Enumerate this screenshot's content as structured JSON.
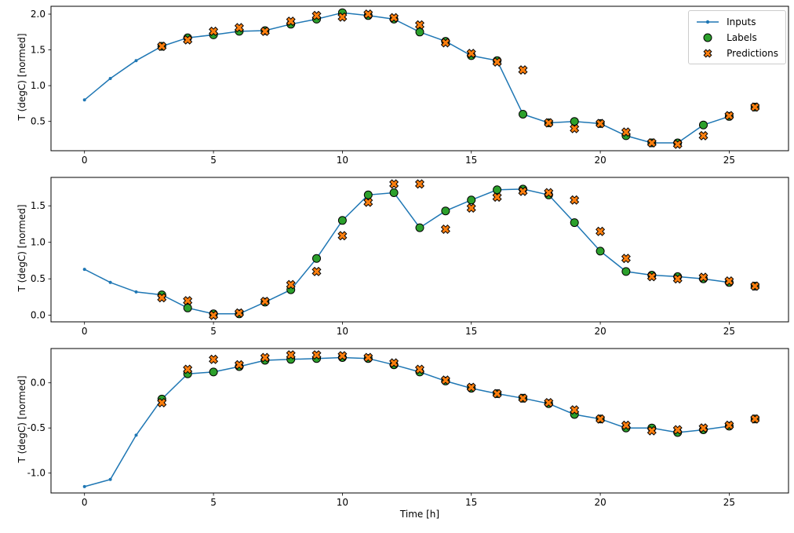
{
  "figure": {
    "xlabel": "Time [h]",
    "ylabel": "T (degC) [normed]",
    "background": "#ffffff",
    "spine_color": "#000000"
  },
  "legend": {
    "position": "upper right of first subplot",
    "items": [
      {
        "label": "Inputs",
        "marker": "line-with-dot",
        "color": "#1f77b4"
      },
      {
        "label": "Labels",
        "marker": "circle",
        "color": "#2ca02c",
        "edge": "#000000"
      },
      {
        "label": "Predictions",
        "marker": "x",
        "color": "#ff7f0e",
        "edge": "#000000"
      }
    ]
  },
  "chart_data": [
    {
      "type": "line",
      "title": "",
      "ylabel": "T (degC) [normed]",
      "xlim": [
        -1.3,
        27.3
      ],
      "ylim": [
        0.09,
        2.11
      ],
      "xticks": [
        0,
        5,
        10,
        15,
        20,
        25
      ],
      "yticks": [
        0.5,
        1.0,
        1.5,
        2.0
      ],
      "grid": false,
      "legend": true,
      "series": [
        {
          "name": "Inputs",
          "type": "line",
          "color": "#1f77b4",
          "x": [
            0,
            1,
            2,
            3,
            4,
            5,
            6,
            7,
            8,
            9,
            10,
            11,
            12,
            13,
            14,
            15,
            16,
            17,
            18,
            19,
            20,
            21,
            22,
            23,
            24,
            25
          ],
          "y": [
            0.8,
            1.1,
            1.35,
            1.55,
            1.67,
            1.71,
            1.76,
            1.77,
            1.86,
            1.93,
            2.02,
            1.98,
            1.93,
            1.75,
            1.62,
            1.42,
            1.35,
            0.6,
            0.48,
            0.5,
            0.47,
            0.3,
            0.2,
            0.2,
            0.45,
            0.57
          ]
        },
        {
          "name": "Labels",
          "type": "scatter-circle",
          "color": "#2ca02c",
          "x": [
            3,
            4,
            5,
            6,
            7,
            8,
            9,
            10,
            11,
            12,
            13,
            14,
            15,
            16,
            17,
            18,
            19,
            20,
            21,
            22,
            23,
            24,
            25,
            26
          ],
          "y": [
            1.55,
            1.67,
            1.71,
            1.76,
            1.77,
            1.86,
            1.93,
            2.02,
            1.98,
            1.93,
            1.75,
            1.62,
            1.42,
            1.35,
            0.6,
            0.48,
            0.5,
            0.47,
            0.3,
            0.2,
            0.2,
            0.45,
            0.57,
            0.7
          ]
        },
        {
          "name": "Predictions",
          "type": "scatter-x",
          "color": "#ff7f0e",
          "x": [
            3,
            4,
            5,
            6,
            7,
            8,
            9,
            10,
            11,
            12,
            13,
            14,
            15,
            16,
            17,
            18,
            19,
            20,
            21,
            22,
            23,
            24,
            25,
            26
          ],
          "y": [
            1.55,
            1.64,
            1.76,
            1.81,
            1.76,
            1.9,
            1.98,
            1.96,
            2.0,
            1.95,
            1.85,
            1.6,
            1.45,
            1.33,
            1.22,
            0.48,
            0.4,
            0.47,
            0.35,
            0.2,
            0.18,
            0.3,
            0.58,
            0.7
          ]
        }
      ]
    },
    {
      "type": "line",
      "title": "",
      "ylabel": "T (degC) [normed]",
      "xlim": [
        -1.3,
        27.3
      ],
      "ylim": [
        -0.09,
        1.89
      ],
      "xticks": [
        0,
        5,
        10,
        15,
        20,
        25
      ],
      "yticks": [
        0.0,
        0.5,
        1.0,
        1.5
      ],
      "grid": false,
      "legend": false,
      "series": [
        {
          "name": "Inputs",
          "type": "line",
          "color": "#1f77b4",
          "x": [
            0,
            1,
            2,
            3,
            4,
            5,
            6,
            7,
            8,
            9,
            10,
            11,
            12,
            13,
            14,
            15,
            16,
            17,
            18,
            19,
            20,
            21,
            22,
            23,
            24,
            25
          ],
          "y": [
            0.63,
            0.45,
            0.32,
            0.28,
            0.1,
            0.02,
            0.02,
            0.18,
            0.35,
            0.78,
            1.3,
            1.65,
            1.68,
            1.2,
            1.43,
            1.58,
            1.72,
            1.73,
            1.65,
            1.27,
            0.88,
            0.6,
            0.55,
            0.53,
            0.5,
            0.45
          ]
        },
        {
          "name": "Labels",
          "type": "scatter-circle",
          "color": "#2ca02c",
          "x": [
            3,
            4,
            5,
            6,
            7,
            8,
            9,
            10,
            11,
            12,
            13,
            14,
            15,
            16,
            17,
            18,
            19,
            20,
            21,
            22,
            23,
            24,
            25,
            26
          ],
          "y": [
            0.28,
            0.1,
            0.02,
            0.02,
            0.18,
            0.35,
            0.78,
            1.3,
            1.65,
            1.68,
            1.2,
            1.43,
            1.58,
            1.72,
            1.73,
            1.65,
            1.27,
            0.88,
            0.6,
            0.55,
            0.53,
            0.5,
            0.45,
            0.4
          ]
        },
        {
          "name": "Predictions",
          "type": "scatter-x",
          "color": "#ff7f0e",
          "x": [
            3,
            4,
            5,
            6,
            7,
            8,
            9,
            10,
            11,
            12,
            13,
            14,
            15,
            16,
            17,
            18,
            19,
            20,
            21,
            22,
            23,
            24,
            25,
            26
          ],
          "y": [
            0.24,
            0.2,
            0.0,
            0.03,
            0.19,
            0.42,
            0.6,
            1.09,
            1.55,
            1.8,
            1.8,
            1.18,
            1.47,
            1.62,
            1.7,
            1.68,
            1.58,
            1.15,
            0.78,
            0.53,
            0.5,
            0.52,
            0.47,
            0.4
          ]
        }
      ]
    },
    {
      "type": "line",
      "title": "",
      "ylabel": "T (degC) [normed]",
      "xlabel": "Time [h]",
      "xlim": [
        -1.3,
        27.3
      ],
      "ylim": [
        -1.22,
        0.38
      ],
      "xticks": [
        0,
        5,
        10,
        15,
        20,
        25
      ],
      "yticks": [
        -1.0,
        -0.5,
        0.0
      ],
      "grid": false,
      "legend": false,
      "series": [
        {
          "name": "Inputs",
          "type": "line",
          "color": "#1f77b4",
          "x": [
            0,
            1,
            2,
            3,
            4,
            5,
            6,
            7,
            8,
            9,
            10,
            11,
            12,
            13,
            14,
            15,
            16,
            17,
            18,
            19,
            20,
            21,
            22,
            23,
            24,
            25
          ],
          "y": [
            -1.15,
            -1.07,
            -0.58,
            -0.18,
            0.1,
            0.12,
            0.18,
            0.25,
            0.26,
            0.27,
            0.28,
            0.27,
            0.2,
            0.12,
            0.02,
            -0.06,
            -0.12,
            -0.17,
            -0.23,
            -0.35,
            -0.4,
            -0.5,
            -0.5,
            -0.55,
            -0.52,
            -0.48
          ]
        },
        {
          "name": "Labels",
          "type": "scatter-circle",
          "color": "#2ca02c",
          "x": [
            3,
            4,
            5,
            6,
            7,
            8,
            9,
            10,
            11,
            12,
            13,
            14,
            15,
            16,
            17,
            18,
            19,
            20,
            21,
            22,
            23,
            24,
            25,
            26
          ],
          "y": [
            -0.18,
            0.1,
            0.12,
            0.18,
            0.25,
            0.26,
            0.27,
            0.28,
            0.27,
            0.2,
            0.12,
            0.02,
            -0.06,
            -0.12,
            -0.17,
            -0.23,
            -0.35,
            -0.4,
            -0.5,
            -0.5,
            -0.55,
            -0.52,
            -0.48,
            -0.4
          ]
        },
        {
          "name": "Predictions",
          "type": "scatter-x",
          "color": "#ff7f0e",
          "x": [
            3,
            4,
            5,
            6,
            7,
            8,
            9,
            10,
            11,
            12,
            13,
            14,
            15,
            16,
            17,
            18,
            19,
            20,
            21,
            22,
            23,
            24,
            25,
            26
          ],
          "y": [
            -0.22,
            0.15,
            0.26,
            0.2,
            0.28,
            0.31,
            0.31,
            0.3,
            0.28,
            0.22,
            0.15,
            0.03,
            -0.05,
            -0.12,
            -0.17,
            -0.22,
            -0.3,
            -0.4,
            -0.47,
            -0.53,
            -0.52,
            -0.5,
            -0.47,
            -0.4
          ]
        }
      ]
    }
  ]
}
